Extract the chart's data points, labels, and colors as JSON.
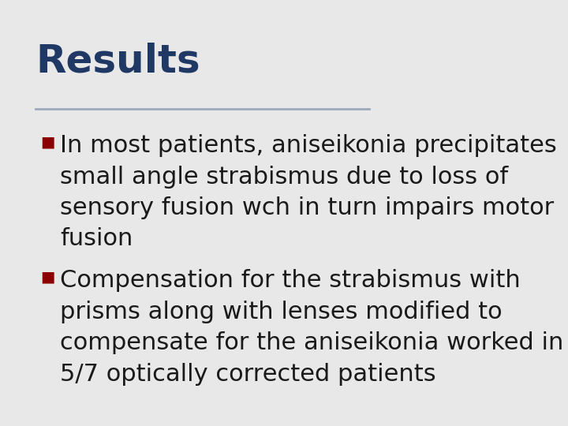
{
  "title": "Results",
  "title_color": "#1F3864",
  "title_fontsize": 36,
  "separator_color": "#9BAAB8",
  "background_color": "#E8E8E8",
  "bullet_color": "#8B0000",
  "bullet_size": 14,
  "text_color": "#1A1A1A",
  "text_fontsize": 22,
  "bullet1_lines": [
    "In most patients, aniseikonia precipitates",
    "small angle strabismus due to loss of",
    "sensory fusion wch in turn impairs motor",
    "fusion"
  ],
  "bullet2_lines": [
    "Compensation for the strabismus with",
    "prisms along with lenses modified to",
    "compensate for the aniseikonia worked in",
    "5/7 optically corrected patients"
  ]
}
